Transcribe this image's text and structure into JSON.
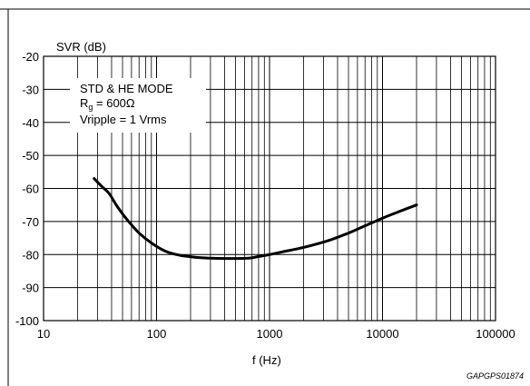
{
  "chart_data": {
    "type": "line",
    "title": "",
    "ylabel": "SVR (dB)",
    "xlabel": "f (Hz)",
    "xscale": "log",
    "xlim": [
      10,
      100000
    ],
    "ylim": [
      -100,
      -20
    ],
    "xticks": [
      10,
      100,
      1000,
      10000,
      100000
    ],
    "xtick_labels": [
      "10",
      "100",
      "1000",
      "10000",
      "100000"
    ],
    "yticks": [
      -20,
      -30,
      -40,
      -50,
      -60,
      -70,
      -80,
      -90,
      -100
    ],
    "ytick_labels": [
      "-20",
      "-30",
      "-40",
      "-50",
      "-60",
      "-70",
      "-80",
      "-90",
      "-100"
    ],
    "grid": true,
    "annotation": {
      "line1": "STD & HE MODE",
      "line2_main": "R",
      "line2_sub": "g",
      "line2_rest": " = 600Ω",
      "line3": "Vripple = 1 Vrms"
    },
    "figure_code": "GAPGPS01874",
    "series": [
      {
        "color": "#000000",
        "x": [
          28,
          33,
          38,
          45,
          55,
          70,
          90,
          120,
          160,
          220,
          300,
          400,
          500,
          650,
          800,
          1000,
          1300,
          1800,
          2500,
          3500,
          5000,
          7000,
          10000,
          14000,
          20000
        ],
        "y": [
          -57,
          -59.5,
          -61.5,
          -65.5,
          -69.5,
          -73.5,
          -76.5,
          -79,
          -80.2,
          -80.8,
          -81.1,
          -81.2,
          -81.2,
          -81.1,
          -80.6,
          -80,
          -79.2,
          -78.2,
          -77,
          -75.5,
          -73.5,
          -71.3,
          -69,
          -67,
          -65
        ]
      }
    ]
  }
}
